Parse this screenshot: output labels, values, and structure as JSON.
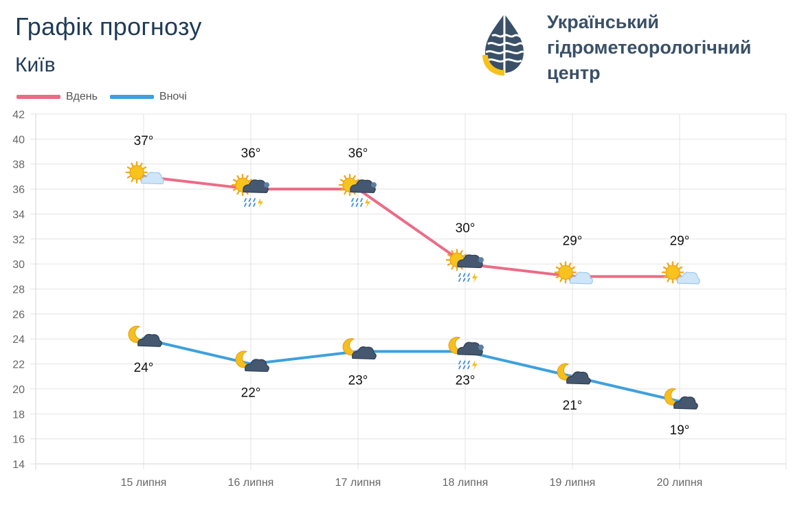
{
  "header": {
    "title": "Графік прогнозу",
    "city": "Київ"
  },
  "logo": {
    "org_line1": "Український",
    "org_line2": "гідрометеорологічний",
    "org_line3": "центр",
    "colors": {
      "navy": "#3a5068",
      "yellow": "#f6c21a"
    }
  },
  "chart_data": {
    "type": "line",
    "categories": [
      "15 липня",
      "16 липня",
      "17 липня",
      "18 липня",
      "19 липня",
      "20 липня"
    ],
    "series": [
      {
        "name": "Вдень",
        "color": "#ec6b86",
        "values": [
          37,
          36,
          36,
          30,
          29,
          29
        ],
        "labels": [
          "37°",
          "36°",
          "36°",
          "30°",
          "29°",
          "29°"
        ],
        "icons": [
          "sun-cloud-icon",
          "sun-thunderstorm-rain-icon",
          "sun-thunderstorm-rain-icon",
          "sun-thunderstorm-rain-icon",
          "sun-cloud-icon",
          "sun-cloud-icon"
        ]
      },
      {
        "name": "Вночі",
        "color": "#3ea0dd",
        "values": [
          24,
          22,
          23,
          23,
          21,
          19
        ],
        "labels": [
          "24°",
          "22°",
          "23°",
          "23°",
          "21°",
          "19°"
        ],
        "icons": [
          "moon-cloud-icon",
          "moon-cloud-icon",
          "moon-cloud-icon",
          "moon-thunderstorm-rain-icon",
          "moon-cloud-icon",
          "moon-cloud-icon"
        ]
      }
    ],
    "yticks": [
      14,
      16,
      18,
      20,
      22,
      24,
      26,
      28,
      30,
      32,
      34,
      36,
      38,
      40,
      42
    ],
    "ylim": [
      14,
      42
    ],
    "grid": true,
    "legend_position": "top-left"
  }
}
